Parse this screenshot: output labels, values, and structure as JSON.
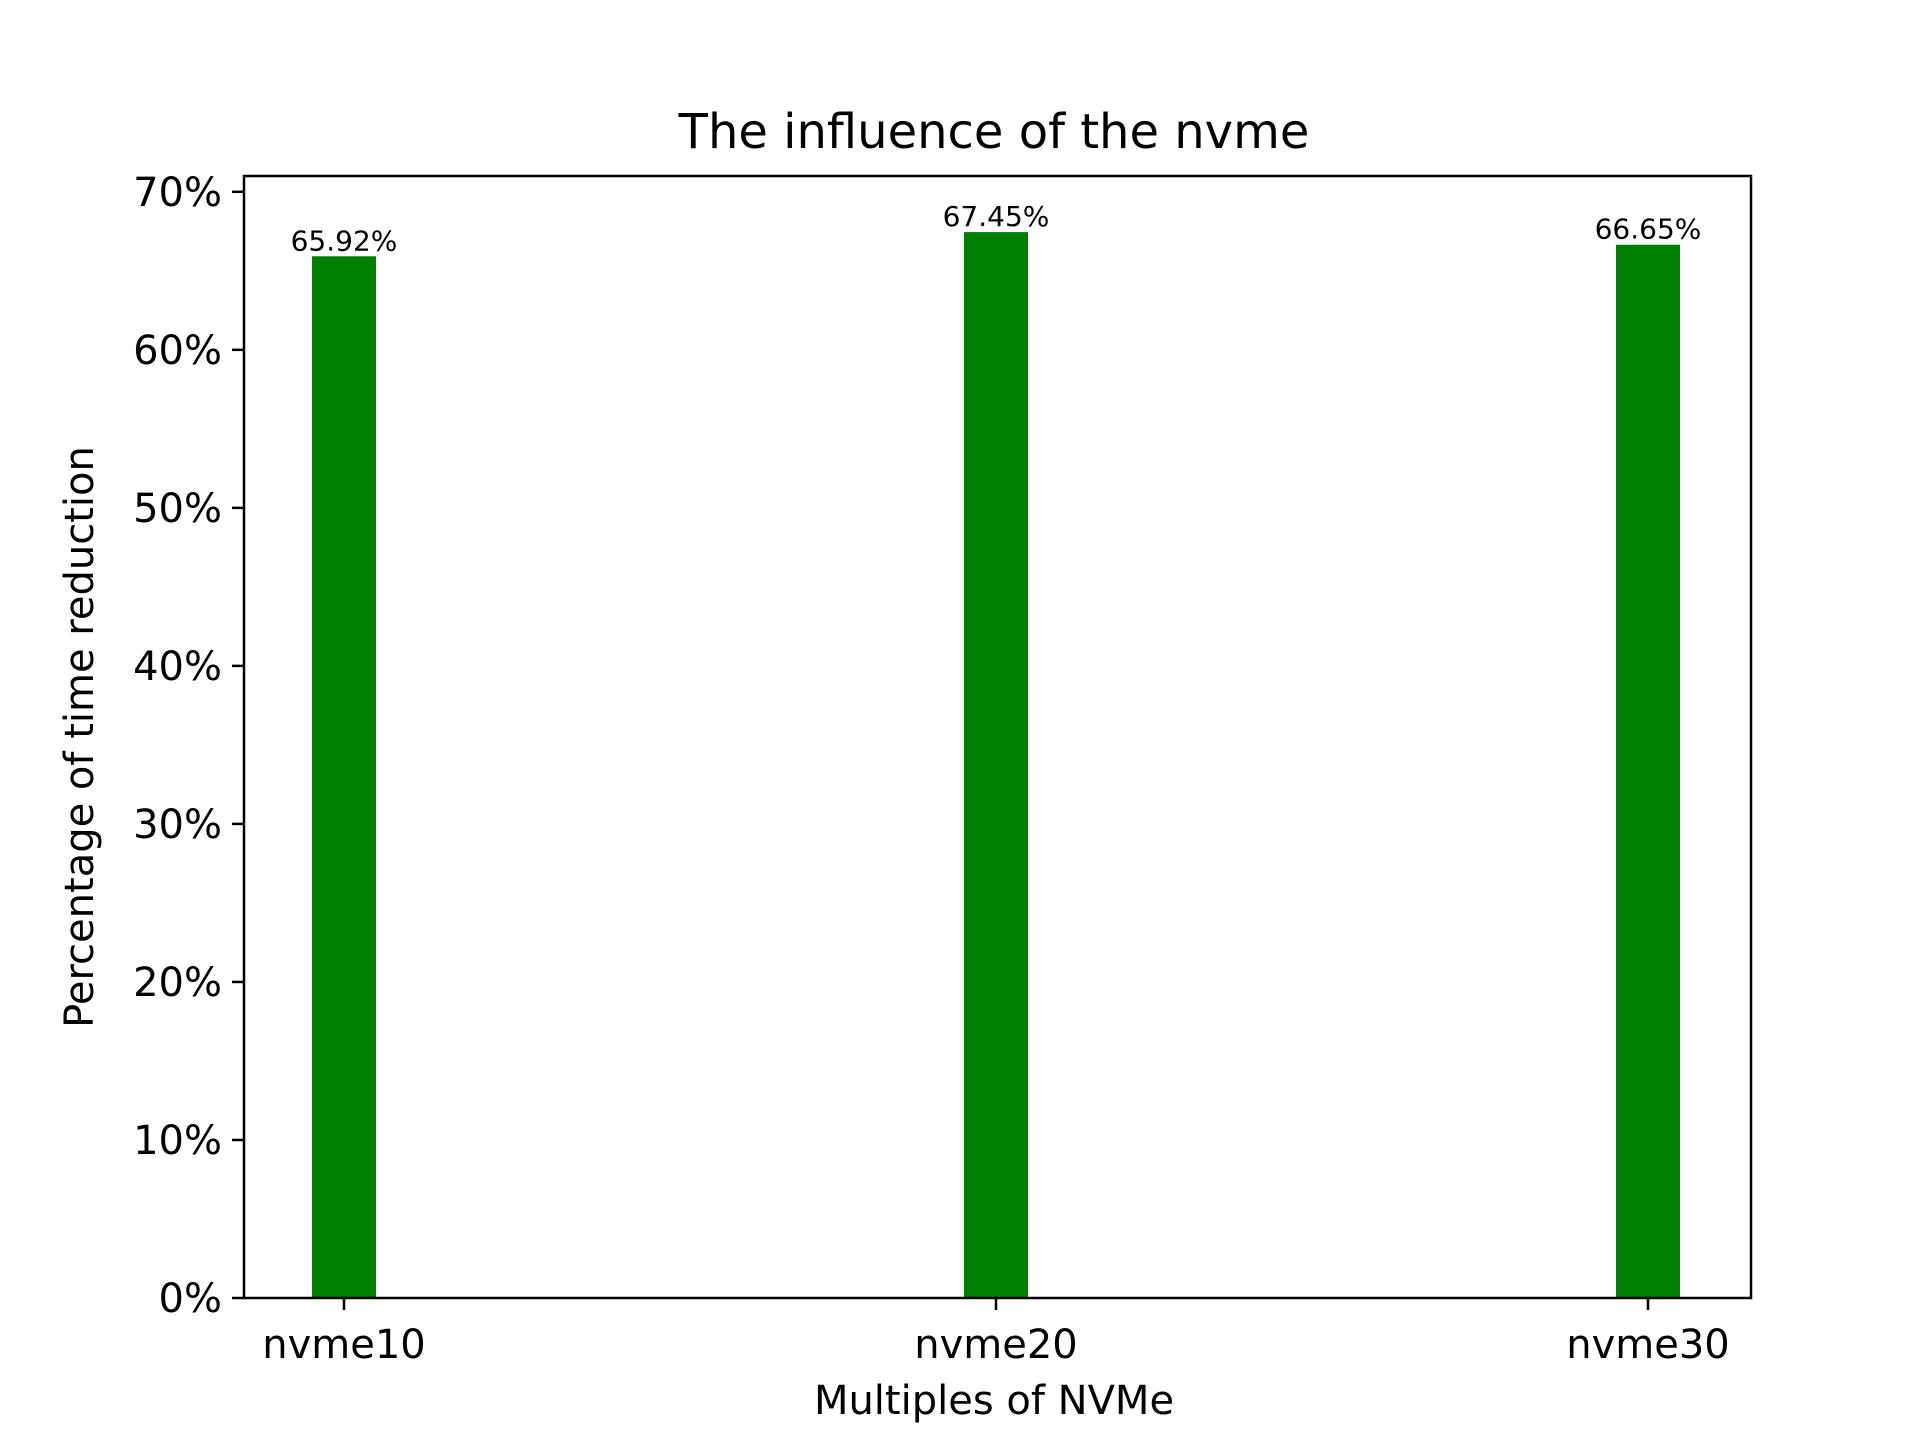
{
  "chart_data": {
    "type": "bar",
    "title": "The influence of the nvme",
    "xlabel": "Multiples of NVMe",
    "ylabel": "Percentage of time reduction",
    "categories": [
      "nvme10",
      "nvme20",
      "nvme30"
    ],
    "values": [
      65.92,
      67.45,
      66.65
    ],
    "value_labels": [
      "65.92%",
      "67.45%",
      "66.65%"
    ],
    "ylim": [
      0,
      71
    ],
    "yticks": [
      0,
      10,
      20,
      30,
      40,
      50,
      60,
      70
    ],
    "ytick_labels": [
      "0%",
      "10%",
      "20%",
      "30%",
      "40%",
      "50%",
      "60%",
      "70%"
    ],
    "bar_color": "#008000",
    "grid": false,
    "legend": "none"
  }
}
